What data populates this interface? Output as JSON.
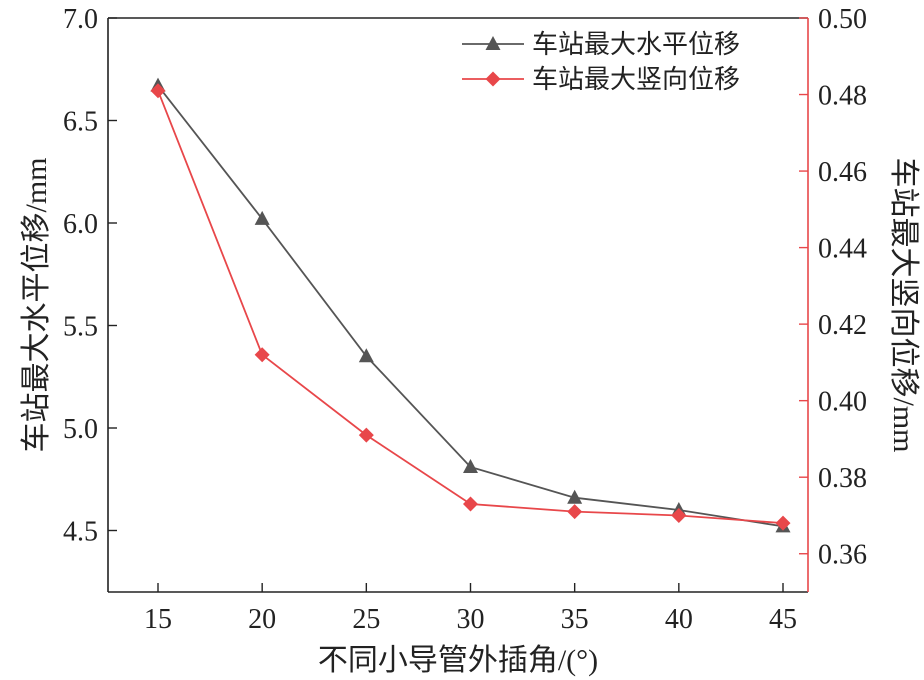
{
  "chart_data": {
    "type": "line",
    "x": [
      15,
      20,
      25,
      30,
      35,
      40,
      45
    ],
    "xlabel": "不同小导管外插角/(°)",
    "x_ticks": [
      "15",
      "20",
      "25",
      "30",
      "35",
      "40",
      "45"
    ],
    "y_left": {
      "label": "车站最大水平位移/mm",
      "ylim": [
        4.2,
        7.0
      ],
      "ticks": [
        "4.5",
        "5.0",
        "5.5",
        "6.0",
        "6.5",
        "7.0"
      ]
    },
    "y_right": {
      "label": "车站最大竖向位移/mm",
      "ylim": [
        0.35,
        0.5
      ],
      "ticks": [
        "0.36",
        "0.38",
        "0.40",
        "0.42",
        "0.44",
        "0.46",
        "0.48",
        "0.50"
      ]
    },
    "series": [
      {
        "name": "车站最大水平位移",
        "axis": "left",
        "marker": "triangle",
        "color": "#555555",
        "values": [
          6.67,
          6.02,
          5.35,
          4.81,
          4.66,
          4.6,
          4.52
        ]
      },
      {
        "name": "车站最大竖向位移",
        "axis": "right",
        "marker": "diamond",
        "color": "#e8474a",
        "values": [
          0.481,
          0.412,
          0.391,
          0.373,
          0.371,
          0.37,
          0.368
        ]
      }
    ],
    "legend_position": "top-right",
    "grid": false
  }
}
